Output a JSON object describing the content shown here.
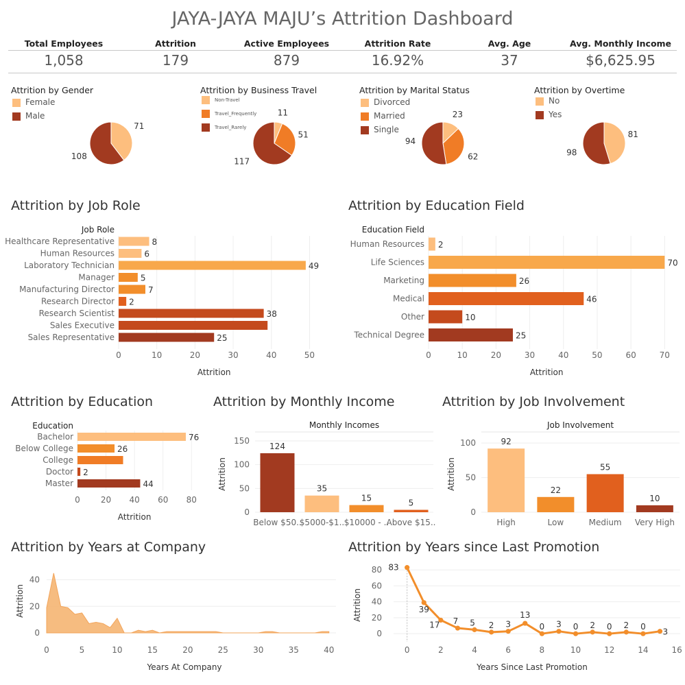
{
  "title": "JAYA-JAYA MAJU’s Attrition Dashboard",
  "kpis": [
    {
      "label": "Total Employees",
      "value": "1,058"
    },
    {
      "label": "Attrition",
      "value": "179"
    },
    {
      "label": "Active Employees",
      "value": "879"
    },
    {
      "label": "Attrition Rate",
      "value": "16.92%"
    },
    {
      "label": "Avg. Age",
      "value": "37"
    },
    {
      "label": "Avg. Monthly Income",
      "value": "$6,625.95"
    }
  ],
  "colors": {
    "light": "#FDBE7E",
    "light_orange": "#F8A84B",
    "orange": "#F28E2B",
    "dark_orange": "#E1601E",
    "red_orange": "#C44A1D",
    "brown": "#A23A20",
    "area": "#F5B06A",
    "line": "#F28E2B"
  },
  "chart_data": [
    {
      "id": "gender",
      "type": "pie",
      "title": "Attrition by Gender",
      "legend": [
        "Female",
        "Male"
      ],
      "values": [
        71,
        108
      ],
      "colors": [
        "#FDBE7E",
        "#A23A20"
      ]
    },
    {
      "id": "travel",
      "type": "pie",
      "title": "Attrition by Business Travel",
      "legend": [
        "Non-Travel",
        "Travel_Frequently",
        "Travel_Rarely"
      ],
      "values": [
        11,
        51,
        117
      ],
      "colors": [
        "#FDBE7E",
        "#F07C26",
        "#A23A20"
      ]
    },
    {
      "id": "marital",
      "type": "pie",
      "title": "Attrition by Marital Status",
      "legend": [
        "Divorced",
        "Married",
        "Single"
      ],
      "values": [
        23,
        62,
        94
      ],
      "colors": [
        "#FDBE7E",
        "#F07C26",
        "#A23A20"
      ]
    },
    {
      "id": "overtime",
      "type": "pie",
      "title": "Attrition by Overtime",
      "legend": [
        "No",
        "Yes"
      ],
      "values": [
        81,
        98
      ],
      "colors": [
        "#FDBE7E",
        "#A23A20"
      ]
    },
    {
      "id": "jobrole",
      "type": "bar",
      "orientation": "horizontal",
      "title": "Attrition by Job Role",
      "header": "Job Role",
      "xlabel": "Attrition",
      "categories": [
        "Healthcare Representative",
        "Human Resources",
        "Laboratory Technician",
        "Manager",
        "Manufacturing Director",
        "Research Director",
        "Research Scientist",
        "Sales Executive",
        "Sales Representative"
      ],
      "values": [
        8,
        6,
        49,
        5,
        7,
        2,
        38,
        39,
        25
      ],
      "labels": [
        "8",
        "6",
        "49",
        "5",
        "7",
        "2",
        "38",
        "",
        "25"
      ],
      "colors": [
        "#FDBE7E",
        "#FDBE7E",
        "#F8A84B",
        "#F28E2B",
        "#F28E2B",
        "#E1601E",
        "#C44A1D",
        "#C44A1D",
        "#A23A20"
      ],
      "ticks": [
        0,
        10,
        20,
        30,
        40,
        50
      ],
      "xlim": [
        0,
        58
      ]
    },
    {
      "id": "edufield",
      "type": "bar",
      "orientation": "horizontal",
      "title": "Attrition by Education Field",
      "header": "Education Field",
      "xlabel": "Attrition",
      "categories": [
        "Human Resources",
        "Life Sciences",
        "Marketing",
        "Medical",
        "Other",
        "Technical Degree"
      ],
      "values": [
        2,
        70,
        26,
        46,
        10,
        25
      ],
      "labels": [
        "2",
        "70",
        "26",
        "46",
        "10",
        "25"
      ],
      "colors": [
        "#FDBE7E",
        "#F8A84B",
        "#F28E2B",
        "#E1601E",
        "#C44A1D",
        "#A23A20"
      ],
      "ticks": [
        0,
        10,
        20,
        30,
        40,
        50,
        60,
        70
      ],
      "xlim": [
        0,
        74
      ]
    },
    {
      "id": "education",
      "type": "bar",
      "orientation": "horizontal",
      "title": "Attrition by Education",
      "header": "Education",
      "xlabel": "Attrition",
      "categories": [
        "Bachelor",
        "Below College",
        "College",
        "Doctor",
        "Master"
      ],
      "values": [
        76,
        26,
        32,
        2,
        44
      ],
      "labels": [
        "76",
        "26",
        "",
        "2",
        "44"
      ],
      "colors": [
        "#FDBE7E",
        "#F28E2B",
        "#F07C26",
        "#C44A1D",
        "#A23A20"
      ],
      "ticks": [
        0,
        20,
        40,
        60,
        80
      ],
      "xlim": [
        0,
        89
      ]
    },
    {
      "id": "income",
      "type": "bar",
      "orientation": "vertical",
      "title": "Attrition by Monthly Income",
      "header": "Monthly Incomes",
      "ylabel": "Attrition",
      "categories": [
        "Below $50..",
        "$5000-$1..",
        "$10000 - ..",
        "Above $15.."
      ],
      "values": [
        124,
        35,
        15,
        5
      ],
      "labels": [
        "124",
        "35",
        "15",
        "5"
      ],
      "colors": [
        "#A23A20",
        "#FDBE7E",
        "#F28E2B",
        "#E1601E"
      ],
      "ticks": [
        0,
        50,
        100,
        150
      ],
      "ylim": [
        0,
        160
      ]
    },
    {
      "id": "involvement",
      "type": "bar",
      "orientation": "vertical",
      "title": "Attrition by Job Involvement",
      "header": "Job Involvement",
      "ylabel": "Attrition",
      "categories": [
        "High",
        "Low",
        "Medium",
        "Very High"
      ],
      "values": [
        92,
        22,
        55,
        10
      ],
      "labels": [
        "92",
        "22",
        "55",
        "10"
      ],
      "colors": [
        "#FDBE7E",
        "#F28E2B",
        "#E1601E",
        "#A23A20"
      ],
      "ticks": [
        0,
        50,
        100
      ],
      "ylim": [
        0,
        110
      ]
    },
    {
      "id": "yearsatcompany",
      "type": "area",
      "title": "Attrition by Years at Company",
      "xlabel": "Years At Company",
      "ylabel": "Attrition",
      "x": [
        0,
        1,
        2,
        3,
        4,
        5,
        6,
        7,
        8,
        9,
        10,
        11,
        12,
        13,
        14,
        15,
        16,
        17,
        18,
        19,
        20,
        21,
        22,
        23,
        24,
        25,
        26,
        27,
        28,
        29,
        30,
        31,
        32,
        33,
        34,
        35,
        36,
        37,
        38,
        39,
        40
      ],
      "y": [
        19,
        45,
        20,
        19,
        14,
        15,
        7,
        8,
        7,
        4,
        11,
        0,
        0,
        2,
        1,
        2,
        0,
        1,
        1,
        1,
        1,
        1,
        1,
        1,
        1,
        0,
        0,
        0,
        0,
        0,
        0,
        1,
        1,
        0,
        0,
        0,
        0,
        0,
        0,
        1,
        1
      ],
      "xticks": [
        0,
        5,
        10,
        15,
        20,
        25,
        30,
        35,
        40
      ],
      "yticks": [
        0,
        20,
        40
      ],
      "xlim": [
        0,
        41
      ],
      "ylim": [
        0,
        48
      ]
    },
    {
      "id": "promotion",
      "type": "line",
      "title": "Attrition by Years since Last Promotion",
      "xlabel": "Years Since Last Promotion",
      "ylabel": "Attrition",
      "x": [
        0,
        1,
        2,
        3,
        4,
        5,
        6,
        7,
        8,
        9,
        10,
        11,
        12,
        13,
        14,
        15
      ],
      "y": [
        83,
        39,
        17,
        7,
        5,
        2,
        3,
        13,
        0,
        3,
        0,
        2,
        0,
        2,
        0,
        3
      ],
      "xticks": [
        0,
        2,
        4,
        6,
        8,
        10,
        12,
        14,
        16
      ],
      "yticks": [
        0,
        20,
        40,
        60,
        80
      ],
      "xlim": [
        -0.8,
        16.2
      ],
      "ylim": [
        -5,
        87
      ]
    }
  ]
}
